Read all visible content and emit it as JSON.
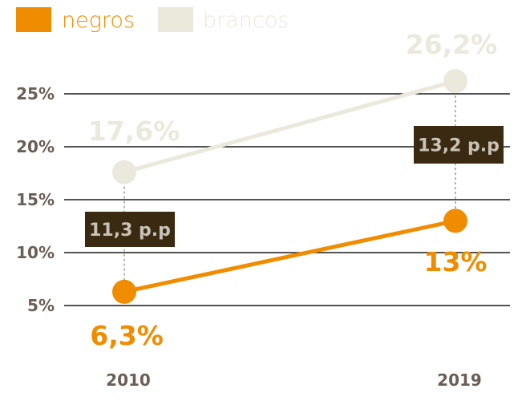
{
  "colors": {
    "negros": "#f08c00",
    "brancos": "#ebe8dc",
    "grid": "#1a1a1a",
    "tick_text": "#6b5e54",
    "gap_box": "#3a2a12",
    "gap_text": "#c9c2b6",
    "connector": "#9a9a9a"
  },
  "chart_data": {
    "type": "line",
    "x": [
      "2010",
      "2019"
    ],
    "ylim": [
      0,
      27.5
    ],
    "y_ticks": [
      5,
      10,
      15,
      20,
      25
    ],
    "y_tick_labels": [
      "5%",
      "10%",
      "15%",
      "20%",
      "25%"
    ],
    "grid": "horizontal",
    "legend_position": "top-left",
    "series": [
      {
        "name": "negros",
        "values": [
          6.3,
          13
        ],
        "labels": [
          "6,3%",
          "13%"
        ]
      },
      {
        "name": "brancos",
        "values": [
          17.6,
          26.2
        ],
        "labels": [
          "17,6%",
          "26,2%"
        ]
      }
    ],
    "gaps": [
      "11,3 p.p",
      "13,2 p.p"
    ]
  }
}
